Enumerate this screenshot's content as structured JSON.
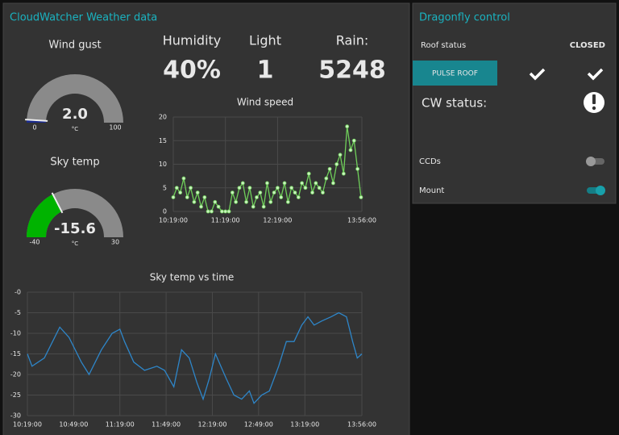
{
  "weather": {
    "title": "CloudWatcher Weather data",
    "gauges": [
      {
        "label": "Wind gust",
        "value": 2,
        "value_label": "2.0",
        "unit": "°C",
        "min": 0,
        "max": 100,
        "color": "#1a2a8c"
      },
      {
        "label": "Sky temp",
        "value": -15.6,
        "unit": "°C",
        "min": -40,
        "max": 30,
        "color": "#00b300"
      }
    ],
    "stats": [
      {
        "label": "Humidity",
        "value": 40,
        "value_label": "40%"
      },
      {
        "label": "Light",
        "value": 1
      },
      {
        "label": "Rain:",
        "value": 5248
      }
    ],
    "charts": [
      {
        "type": "line",
        "title": "Wind speed",
        "color": "#6fcf5a",
        "markers": true,
        "grid": true,
        "x": [
          619,
          623,
          627,
          631,
          635,
          639,
          643,
          647,
          651,
          655,
          659,
          663,
          667,
          671,
          675,
          679,
          683,
          687,
          691,
          695,
          699,
          703,
          707,
          711,
          715,
          719,
          723,
          727,
          731,
          735,
          739,
          743,
          747,
          751,
          755,
          759,
          763,
          767,
          771,
          775,
          779,
          783,
          787,
          791,
          795,
          799,
          803,
          807,
          811,
          815,
          819,
          823,
          827,
          831,
          835
        ],
        "values": [
          3,
          5,
          4,
          7,
          3,
          5,
          2,
          4,
          1,
          3,
          0,
          0,
          2,
          1,
          0,
          0,
          0,
          4,
          2,
          5,
          6,
          2,
          5,
          1,
          3,
          4,
          1,
          6,
          2,
          4,
          5,
          3,
          6,
          2,
          5,
          4,
          3,
          6,
          5,
          8,
          4,
          6,
          5,
          4,
          7,
          9,
          6,
          10,
          12,
          8,
          18,
          13,
          15,
          9,
          3
        ],
        "xlim": [
          619,
          836
        ],
        "xticks": [
          {
            "value": 619,
            "label": "10:19:00"
          },
          {
            "value": 679,
            "label": "11:19:00"
          },
          {
            "value": 739,
            "label": "12:19:00"
          },
          {
            "value": 836,
            "label": "13:56:00"
          }
        ],
        "ylim": [
          0,
          20
        ],
        "yticks": [
          0,
          5,
          10,
          15,
          20
        ]
      },
      {
        "type": "line",
        "title": "Sky temp vs time",
        "color": "#2e86c9",
        "markers": false,
        "grid": true,
        "x": [
          619,
          622,
          630,
          640,
          646,
          654,
          659,
          667,
          674,
          679,
          682,
          688,
          695,
          703,
          708,
          714,
          719,
          724,
          729,
          733,
          737,
          741,
          748,
          753,
          758,
          763,
          766,
          771,
          776,
          782,
          787,
          792,
          797,
          801,
          805,
          810,
          816,
          821,
          826,
          830,
          833,
          836
        ],
        "values": [
          -15,
          -18,
          -16,
          -8.5,
          -11,
          -17,
          -20,
          -14,
          -10,
          -9,
          -12,
          -17,
          -19,
          -18,
          -19,
          -23,
          -14,
          -16,
          -22,
          -26,
          -21,
          -15,
          -21,
          -25,
          -26,
          -24,
          -27,
          -25,
          -24,
          -18,
          -12,
          -12,
          -8,
          -6,
          -8,
          -7,
          -6,
          -5,
          -6,
          -12,
          -16,
          -15
        ],
        "xlim": [
          619,
          836
        ],
        "xticks": [
          {
            "value": 619,
            "label": "10:19:00"
          },
          {
            "value": 649,
            "label": "10:49:00"
          },
          {
            "value": 679,
            "label": "11:19:00"
          },
          {
            "value": 709,
            "label": "11:49:00"
          },
          {
            "value": 739,
            "label": "12:19:00"
          },
          {
            "value": 769,
            "label": "12:49:00"
          },
          {
            "value": 799,
            "label": "13:19:00"
          },
          {
            "value": 836,
            "label": "13:56:00"
          }
        ],
        "ylim": [
          -30,
          0
        ],
        "yticks": [
          {
            "value": 0,
            "label": "-0"
          },
          -5,
          -10,
          -15,
          -20,
          -25,
          -30
        ]
      }
    ]
  },
  "control": {
    "title": "Dragonfly control",
    "roof_status_label": "Roof status",
    "roof_status": "CLOSED",
    "button": "PULSE ROOF",
    "cw_status_label": "CW status:",
    "switches": [
      {
        "label": "CCDs",
        "on": false
      },
      {
        "label": "Mount",
        "on": true
      }
    ]
  }
}
